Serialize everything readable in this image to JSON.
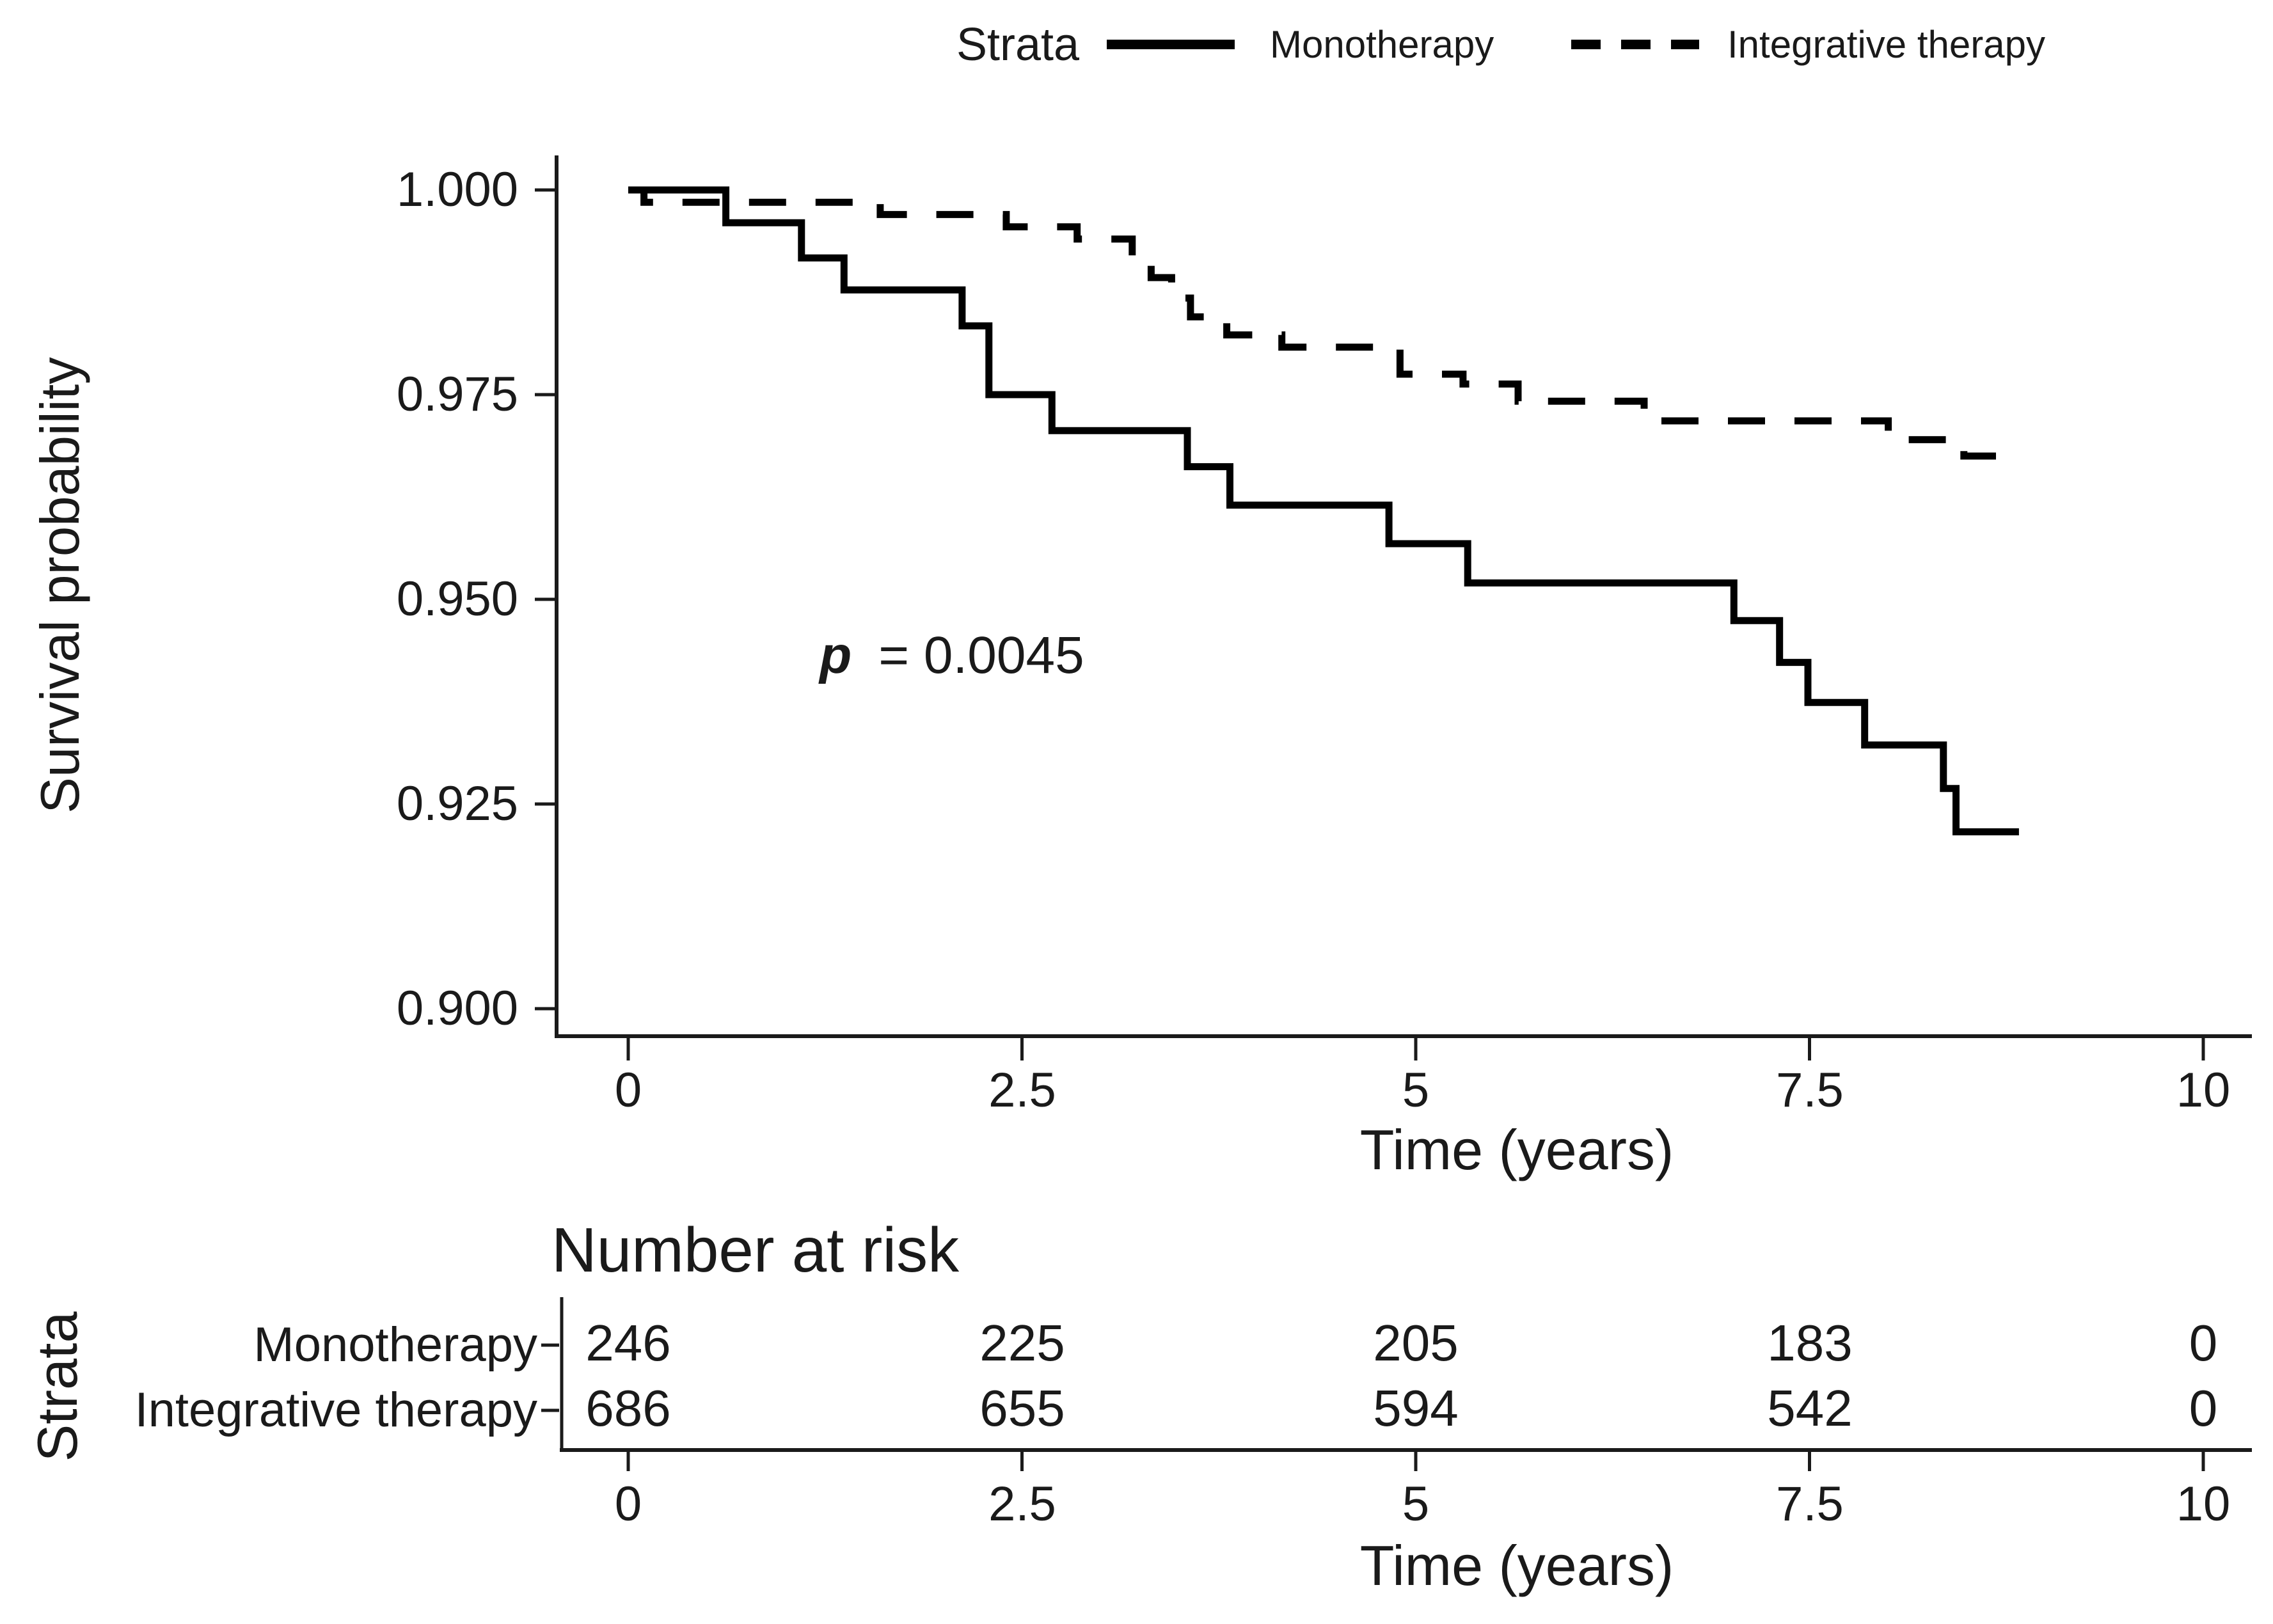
{
  "colors": {
    "background": "#ffffff",
    "foreground": "#1a1a1a",
    "curve": "#000000"
  },
  "legend": {
    "title": "Strata",
    "items": [
      {
        "label": "Monotherapy",
        "line_style": "solid"
      },
      {
        "label": "Integrative therapy",
        "line_style": "dashed"
      }
    ]
  },
  "main_plot": {
    "ylabel": "Survival probability",
    "xlabel": "Time (years)",
    "ytick_labels": [
      "1.000",
      "0.975",
      "0.950",
      "0.925",
      "0.900"
    ],
    "xtick_labels": [
      "0",
      "2.5",
      "5",
      "7.5",
      "10"
    ],
    "annotation": {
      "prefix": "p",
      "text": "= 0.0045"
    }
  },
  "risk_table": {
    "title": "Number at risk",
    "ylabel": "Strata",
    "xlabel": "Time (years)",
    "xtick_labels": [
      "0",
      "2.5",
      "5",
      "7.5",
      "10"
    ],
    "rows": [
      {
        "label": "Monotherapy",
        "counts": [
          "246",
          "225",
          "205",
          "183",
          "0"
        ]
      },
      {
        "label": "Integrative therapy",
        "counts": [
          "686",
          "655",
          "594",
          "542",
          "0"
        ]
      }
    ]
  },
  "chart_data": {
    "type": "line",
    "subtype": "kaplan_meier_step",
    "title": "",
    "xlabel": "Time (years)",
    "ylabel": "Survival probability",
    "xlim": [
      0,
      10.35
    ],
    "ylim": [
      0.8966,
      1.0034
    ],
    "xticks": [
      0,
      2.5,
      5,
      7.5,
      10
    ],
    "yticks": [
      1.0,
      0.975,
      0.95,
      0.925,
      0.9
    ],
    "grid": false,
    "legend_position": "top",
    "annotation": {
      "text": "p = 0.0045",
      "x_years": 1.05,
      "y_survival": 0.951
    },
    "series": [
      {
        "name": "Monotherapy",
        "style": "solid",
        "color": "#000000",
        "points": [
          [
            0,
            1.0
          ],
          [
            0.62,
            0.996
          ],
          [
            1.1,
            0.9917
          ],
          [
            1.37,
            0.9878
          ],
          [
            2.12,
            0.9834
          ],
          [
            2.29,
            0.975
          ],
          [
            2.69,
            0.9706
          ],
          [
            3.55,
            0.9662
          ],
          [
            3.82,
            0.9615
          ],
          [
            4.83,
            0.9568
          ],
          [
            5.33,
            0.952
          ],
          [
            7.02,
            0.9474
          ],
          [
            7.31,
            0.9423
          ],
          [
            7.49,
            0.9374
          ],
          [
            7.85,
            0.9322
          ],
          [
            8.35,
            0.9269
          ],
          [
            8.43,
            0.9216
          ],
          [
            8.83,
            0.9216
          ]
        ]
      },
      {
        "name": "Integrative therapy",
        "style": "dashed",
        "color": "#000000",
        "points": [
          [
            0,
            1.0
          ],
          [
            0.1,
            0.9985
          ],
          [
            1.6,
            0.997
          ],
          [
            2.4,
            0.9955
          ],
          [
            2.85,
            0.994
          ],
          [
            3.2,
            0.9915
          ],
          [
            3.32,
            0.9893
          ],
          [
            3.45,
            0.9868
          ],
          [
            3.57,
            0.9845
          ],
          [
            3.8,
            0.9823
          ],
          [
            4.15,
            0.9808
          ],
          [
            4.9,
            0.9775
          ],
          [
            5.3,
            0.9763
          ],
          [
            5.65,
            0.9742
          ],
          [
            6.45,
            0.9718
          ],
          [
            8.0,
            0.9695
          ],
          [
            8.48,
            0.9675
          ],
          [
            8.85,
            0.9675
          ]
        ]
      }
    ],
    "number_at_risk": {
      "times": [
        0,
        2.5,
        5,
        7.5,
        10
      ],
      "series": [
        {
          "name": "Monotherapy",
          "counts": [
            246,
            225,
            205,
            183,
            0
          ]
        },
        {
          "name": "Integrative therapy",
          "counts": [
            686,
            655,
            594,
            542,
            0
          ]
        }
      ]
    }
  }
}
